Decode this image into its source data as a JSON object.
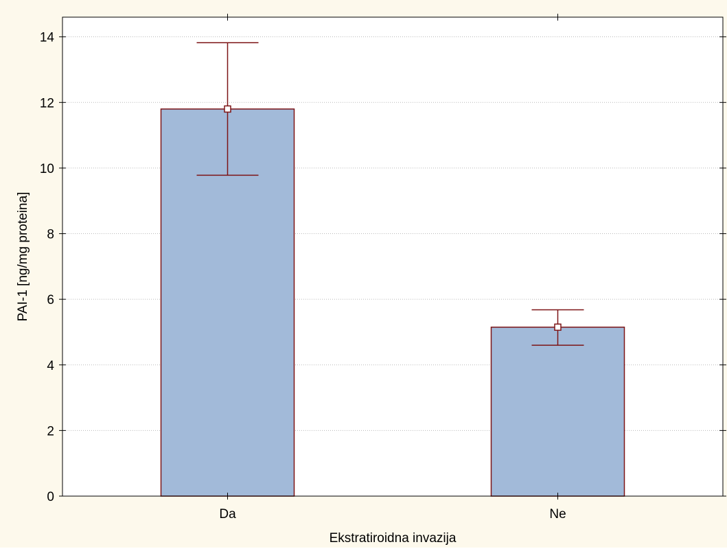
{
  "chart_data": {
    "type": "bar",
    "title": "",
    "xlabel": "Ekstratiroidna invazija",
    "ylabel": "PAI-1 [ng/mg proteina]",
    "categories": [
      "Da",
      "Ne"
    ],
    "values": [
      11.8,
      5.15
    ],
    "error_low": [
      9.78,
      4.6
    ],
    "error_high": [
      13.82,
      5.68
    ],
    "ylim": [
      0,
      14.6
    ],
    "yticks": [
      0,
      2,
      4,
      6,
      8,
      10,
      12,
      14
    ],
    "grid": true,
    "legend": "none"
  },
  "colors": {
    "background": "#fdf9ec",
    "plot_background": "#ffffff",
    "bar_fill": "#a2bad9",
    "bar_stroke": "#7d1416",
    "error_bar": "#7d1416",
    "marker_fill": "#ffffff",
    "grid": "#b8b8b8",
    "axis": "#000000"
  }
}
